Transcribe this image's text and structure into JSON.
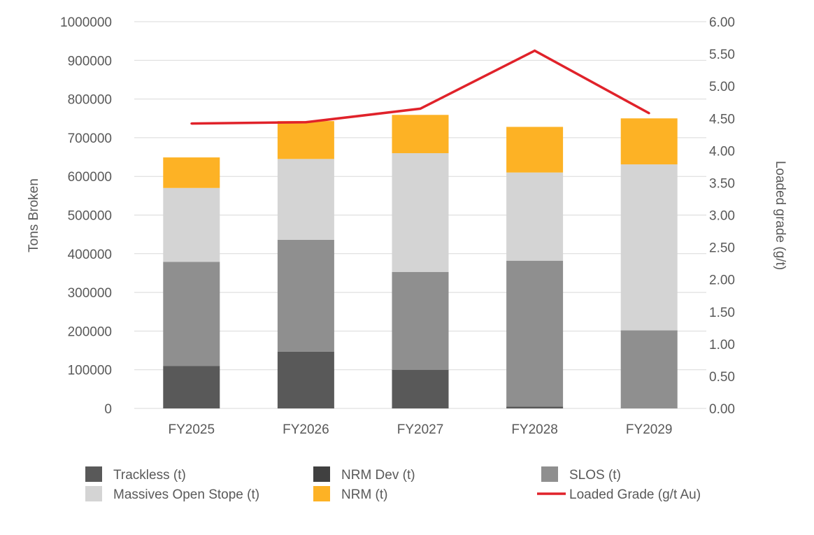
{
  "chart_data": {
    "type": "bar",
    "stacked": true,
    "categories": [
      "FY2025",
      "FY2026",
      "FY2027",
      "FY2028",
      "FY2029"
    ],
    "series": [
      {
        "name": "Trackless (t)",
        "kind": "bar",
        "color": "#595959",
        "values": [
          110000,
          147000,
          100000,
          5000,
          0
        ]
      },
      {
        "name": "NRM Dev (t)",
        "kind": "bar",
        "color": "#404040",
        "values": [
          0,
          0,
          0,
          0,
          0
        ]
      },
      {
        "name": "SLOS (t)",
        "kind": "bar",
        "color": "#8f8f8f",
        "values": [
          269000,
          289000,
          253000,
          377000,
          202000
        ]
      },
      {
        "name": "Massives Open Stope (t)",
        "kind": "bar",
        "color": "#d4d4d4",
        "values": [
          191000,
          209000,
          307000,
          228000,
          429000
        ]
      },
      {
        "name": "NRM (t)",
        "kind": "bar",
        "color": "#fdb225",
        "values": [
          79000,
          98000,
          99000,
          118000,
          119000
        ]
      },
      {
        "name": "Loaded Grade (g/t Au)",
        "kind": "line",
        "axis": "right",
        "color": "#e0222a",
        "values": [
          4.42,
          4.44,
          4.65,
          5.55,
          4.58
        ]
      }
    ],
    "title": "",
    "ylabel": "Tons Broken",
    "y2label": "Loaded grade (g/t)",
    "ylim": [
      0,
      1000000
    ],
    "y2lim": [
      0,
      6
    ],
    "yticks": [
      "0",
      "100000",
      "200000",
      "300000",
      "400000",
      "500000",
      "600000",
      "700000",
      "800000",
      "900000",
      "1000000"
    ],
    "y2ticks": [
      "0.00",
      "0.50",
      "1.00",
      "1.50",
      "2.00",
      "2.50",
      "3.00",
      "3.50",
      "4.00",
      "4.50",
      "5.00",
      "5.50",
      "6.00"
    ],
    "grid": true,
    "legend": "bottom"
  }
}
